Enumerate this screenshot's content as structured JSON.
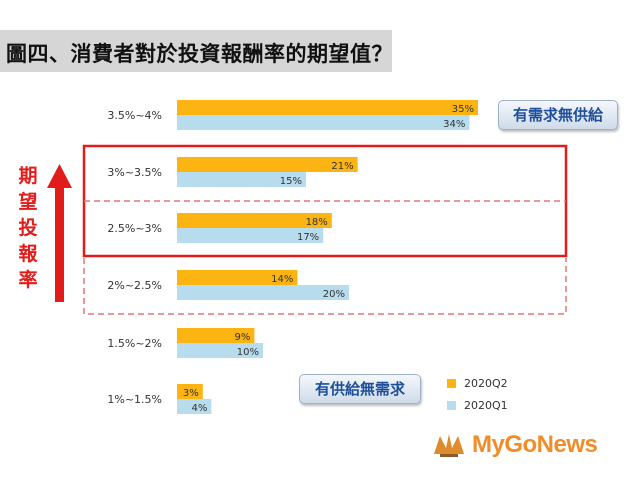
{
  "title": "圖四、消費者對於投資報酬率的期望值？",
  "axis_title": "期望投報率",
  "callouts": {
    "top": "有需求無供給",
    "bottom": "有供給無需求"
  },
  "logo_text": "MyGoNews",
  "colors": {
    "series_q2": "#fbb412",
    "series_q1": "#b7dcee",
    "highlight_solid": "#e21b1b",
    "highlight_dashed": "#e07878"
  },
  "chart_data": {
    "type": "bar",
    "orientation": "horizontal",
    "categories": [
      "3.5%~4%",
      "3%~3.5%",
      "2.5%~3%",
      "2%~2.5%",
      "1.5%~2%",
      "1%~1.5%"
    ],
    "series": [
      {
        "name": "2020Q2",
        "values": [
          35,
          21,
          18,
          14,
          9,
          3
        ],
        "labels": [
          "35%",
          "21%",
          "18%",
          "14%",
          "9%",
          "3%"
        ]
      },
      {
        "name": "2020Q1",
        "values": [
          34,
          15,
          17,
          20,
          10,
          4
        ],
        "labels": [
          "34%",
          "15%",
          "17%",
          "20%",
          "10%",
          "4%"
        ]
      }
    ],
    "xlim": [
      0,
      40
    ],
    "grid": false,
    "legend_position": "bottom-right",
    "unit": "%"
  }
}
